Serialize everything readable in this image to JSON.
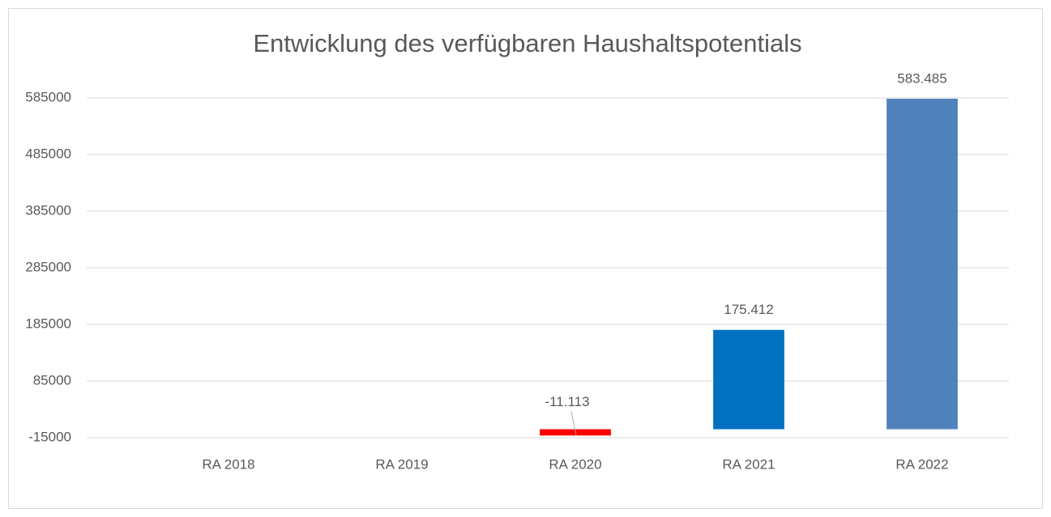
{
  "chart_data": {
    "type": "bar",
    "title": "Entwicklung des verfügbaren Haushaltspotentials",
    "categories": [
      "RA 2018",
      "RA 2019",
      "RA 2020",
      "RA 2021",
      "RA 2022"
    ],
    "values": [
      null,
      null,
      -11113,
      175412,
      583485
    ],
    "value_labels": [
      null,
      null,
      "-11.113",
      "175.412",
      "583.485"
    ],
    "colors": [
      null,
      null,
      "#ff0000",
      "#0070c0",
      "#4f81bd"
    ],
    "ylim": [
      -15000,
      585000
    ],
    "yticks": [
      -15000,
      85000,
      185000,
      285000,
      385000,
      485000,
      585000
    ],
    "grid": true
  }
}
